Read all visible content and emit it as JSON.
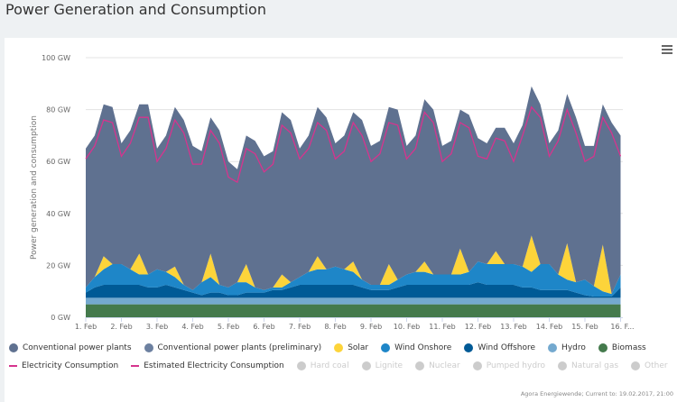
{
  "header": {
    "title": "Power Generation and Consumption"
  },
  "menu_icon": "hamburger-icon",
  "footer": "Agora Energiewende; Current to: 19.02.2017, 21:00",
  "legend": {
    "row1": [
      {
        "label": "Conventional power plants",
        "color": "#5f7190",
        "type": "dot",
        "active": true
      },
      {
        "label": "Conventional power plants (preliminary)",
        "color": "#6c80a0",
        "type": "dot",
        "active": true
      },
      {
        "label": "Solar",
        "color": "#fdd43a",
        "type": "dot",
        "active": true
      },
      {
        "label": "Wind Onshore",
        "color": "#1e86c8",
        "type": "dot",
        "active": true
      },
      {
        "label": "Wind Offshore",
        "color": "#005a96",
        "type": "dot",
        "active": true
      },
      {
        "label": "Hydro",
        "color": "#74a9cf",
        "type": "dot",
        "active": true
      },
      {
        "label": "Biomass",
        "color": "#447a4c",
        "type": "dot",
        "active": true
      }
    ],
    "row2": [
      {
        "label": "Electricity Consumption",
        "color": "#d6348e",
        "type": "line",
        "active": true
      },
      {
        "label": "Estimated Electricity Consumption",
        "color": "#d6348e",
        "type": "dash",
        "active": true
      },
      {
        "label": "Hard coal",
        "color": "#cccccc",
        "type": "dot",
        "active": false
      },
      {
        "label": "Lignite",
        "color": "#cccccc",
        "type": "dot",
        "active": false
      },
      {
        "label": "Nuclear",
        "color": "#cccccc",
        "type": "dot",
        "active": false
      },
      {
        "label": "Pumped hydro",
        "color": "#cccccc",
        "type": "dot",
        "active": false
      },
      {
        "label": "Natural gas",
        "color": "#cccccc",
        "type": "dot",
        "active": false
      },
      {
        "label": "Other",
        "color": "#cccccc",
        "type": "dot",
        "active": false
      }
    ]
  },
  "chart_data": {
    "type": "area",
    "stacked": true,
    "title": "",
    "ylabel": "Power generation and consumption",
    "xlabel": "",
    "ylim": [
      0,
      100
    ],
    "yticks": [
      "0 GW",
      "20 GW",
      "40 GW",
      "60 GW",
      "80 GW",
      "100 GW"
    ],
    "ytick_values": [
      0,
      20,
      40,
      60,
      80,
      100
    ],
    "xticks": [
      "1. Feb",
      "2. Feb",
      "3. Feb",
      "4. Feb",
      "5. Feb",
      "6. Feb",
      "7. Feb",
      "8. Feb",
      "9. Feb",
      "10. Feb",
      "11. Feb",
      "12. Feb",
      "13. Feb",
      "14. Feb",
      "15. Feb",
      "16. F..."
    ],
    "x_start": "1. Feb 00:00",
    "x_step_hours": 6,
    "grid": true,
    "legend_position": "bottom",
    "series": [
      {
        "name": "Biomass",
        "color": "#447a4c",
        "values": [
          5,
          5,
          5,
          5,
          5,
          5,
          5,
          5,
          5,
          5,
          5,
          5,
          5,
          5,
          5,
          5,
          5,
          5,
          5,
          5,
          5,
          5,
          5,
          5,
          5,
          5,
          5,
          5,
          5,
          5,
          5,
          5,
          5,
          5,
          5,
          5,
          5,
          5,
          5,
          5,
          5,
          5,
          5,
          5,
          5,
          5,
          5,
          5,
          5,
          5,
          5,
          5,
          5,
          5,
          5,
          5,
          5,
          5,
          5,
          5,
          5
        ]
      },
      {
        "name": "Hydro",
        "color": "#74a9cf",
        "values": [
          2.5,
          2.5,
          2.5,
          2.5,
          2.5,
          2.5,
          2.5,
          2.5,
          2.5,
          2.5,
          2.5,
          2.5,
          2.5,
          2.5,
          2.5,
          2.5,
          2.5,
          2.5,
          2.5,
          2.5,
          2.5,
          2.5,
          2.5,
          2.5,
          2.5,
          2.5,
          2.5,
          2.5,
          2.5,
          2.5,
          2.5,
          2.5,
          2.5,
          2.5,
          2.5,
          2.5,
          2.5,
          2.5,
          2.5,
          2.5,
          2.5,
          2.5,
          2.5,
          2.5,
          2.5,
          2.5,
          2.5,
          2.5,
          2.5,
          2.5,
          2.5,
          2.5,
          2.5,
          2.5,
          2.5,
          2.5,
          2.5,
          2.5,
          2.5,
          2.5,
          2.5
        ]
      },
      {
        "name": "Wind Offshore",
        "color": "#005a96",
        "values": [
          2,
          4,
          5,
          5,
          5,
          5,
          5,
          4,
          4,
          5,
          4,
          3,
          2,
          1,
          2,
          2,
          1,
          1,
          2,
          2,
          2,
          3,
          3,
          4,
          5,
          5,
          5,
          5,
          5,
          5,
          5,
          4,
          3,
          3,
          3,
          4,
          5,
          5,
          5,
          5,
          5,
          5,
          5,
          5,
          6,
          5,
          5,
          5,
          5,
          4,
          4,
          3,
          3,
          3,
          3,
          2,
          1,
          0.5,
          0.5,
          0.5,
          4
        ]
      },
      {
        "name": "Wind Onshore",
        "color": "#1e86c8",
        "values": [
          2,
          4,
          6,
          8,
          8,
          6,
          4,
          5,
          7,
          5,
          4,
          2,
          1,
          5,
          6,
          3,
          3,
          5,
          4,
          2,
          1,
          1,
          1,
          2,
          3,
          5,
          6,
          6,
          7,
          6,
          5,
          3,
          2,
          2,
          2,
          3,
          4,
          5,
          5,
          4,
          4,
          4,
          4,
          5,
          8,
          8,
          8,
          8,
          8,
          8,
          6,
          10,
          10,
          6,
          4,
          4,
          6,
          4,
          2,
          1,
          5
        ]
      },
      {
        "name": "Solar",
        "color": "#fdd43a",
        "values": [
          0,
          0,
          5,
          0,
          0,
          0,
          8,
          0,
          0,
          0,
          4,
          0,
          0,
          0,
          9,
          0,
          0,
          0,
          7,
          0,
          0,
          0,
          5,
          0,
          0,
          0,
          5,
          0,
          0,
          0,
          4,
          0,
          0,
          0,
          8,
          0,
          0,
          0,
          4,
          0,
          0,
          0,
          10,
          0,
          0,
          0,
          5,
          0,
          0,
          0,
          14,
          0,
          0,
          0,
          14,
          0,
          0,
          0,
          18,
          0,
          0
        ]
      },
      {
        "name": "Conventional power plants",
        "color": "#5f7190",
        "values": [
          53.5,
          54.5,
          58.5,
          60.5,
          46.5,
          53.5,
          57.5,
          65.5,
          46.5,
          52.5,
          61.5,
          63.5,
          55.5,
          50.5,
          52.5,
          59.5,
          48.5,
          43.5,
          49.5,
          56.5,
          51.5,
          52.5,
          62.5,
          62.5,
          49.5,
          52.5,
          57.5,
          58.5,
          47.5,
          51.5,
          57.5,
          61.5,
          53.5,
          55.5,
          60.5,
          65.5,
          49.5,
          52.5,
          62.5,
          63.5,
          49.5,
          51.5,
          53.5,
          60.5,
          47.5,
          46.5,
          47.5,
          52.5,
          46.5,
          54.5,
          57.5,
          61.5,
          46.5,
          55.5,
          57.5,
          63.5,
          51.5,
          54,
          54,
          66,
          53.5
        ]
      }
    ],
    "lines": [
      {
        "name": "Electricity Consumption",
        "color": "#d6348e",
        "values": [
          61,
          66,
          76,
          75,
          62,
          67,
          77,
          77,
          60,
          65,
          76,
          71,
          59,
          59,
          72,
          67,
          54,
          52,
          65,
          63,
          56,
          59,
          74,
          71,
          61,
          65,
          75,
          72,
          61,
          64,
          75,
          70,
          60,
          63,
          75,
          74,
          61,
          65,
          79,
          75,
          60,
          63,
          75,
          73,
          62,
          61,
          69,
          68,
          60,
          70,
          81,
          77,
          62,
          68,
          80,
          71,
          60,
          62,
          77,
          71,
          62
        ]
      }
    ]
  }
}
